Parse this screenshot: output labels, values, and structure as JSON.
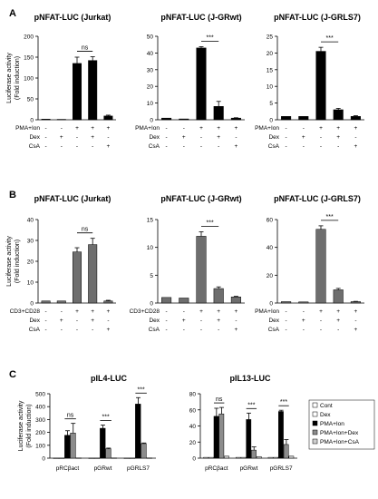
{
  "chart_data": [
    {
      "panel": "A",
      "type": "bar",
      "title": "pNFAT-LUC (Jurkat)",
      "ylabel": [
        "Luciferase activity",
        "(Fold induction)"
      ],
      "ylim": [
        0,
        200
      ],
      "yticks": [
        0,
        50,
        100,
        150,
        200
      ],
      "series": [
        {
          "color": "#000000",
          "values": [
            1.5,
            1,
            135,
            142,
            9
          ],
          "errors": [
            0,
            0,
            15,
            9,
            2
          ]
        }
      ],
      "conditions": [
        {
          "label": "PMA+Ion",
          "signs": [
            "-",
            "-",
            "+",
            "+",
            "+"
          ]
        },
        {
          "label": "Dex",
          "signs": [
            "-",
            "+",
            "-",
            "+",
            "-"
          ]
        },
        {
          "label": "CsA",
          "signs": [
            "-",
            "-",
            "-",
            "-",
            "+"
          ]
        }
      ],
      "significance": [
        {
          "from": 2,
          "to": 3,
          "label": "ns"
        }
      ]
    },
    {
      "panel": "",
      "type": "bar",
      "title": "pNFAT-LUC (J-GRwt)",
      "ylim": [
        0,
        50
      ],
      "yticks": [
        0,
        10,
        20,
        30,
        40,
        50
      ],
      "series": [
        {
          "color": "#000000",
          "values": [
            1,
            0.5,
            43,
            8,
            1
          ],
          "errors": [
            0,
            0,
            0.8,
            3,
            0.2
          ]
        }
      ],
      "conditions": [
        {
          "label": "PMA+Ion",
          "signs": [
            "-",
            "-",
            "+",
            "+",
            "+"
          ]
        },
        {
          "label": "Dex",
          "signs": [
            "-",
            "+",
            "-",
            "+",
            "-"
          ]
        },
        {
          "label": "CsA",
          "signs": [
            "-",
            "-",
            "-",
            "-",
            "+"
          ]
        }
      ],
      "significance": [
        {
          "from": 2,
          "to": 3,
          "label": "***"
        }
      ]
    },
    {
      "panel": "",
      "type": "bar",
      "title": "pNFAT-LUC (J-GRLS7)",
      "ylim": [
        0,
        25
      ],
      "yticks": [
        0,
        5,
        10,
        15,
        20,
        25
      ],
      "series": [
        {
          "color": "#000000",
          "values": [
            1,
            1,
            20.5,
            3,
            1
          ],
          "errors": [
            0,
            0,
            1.2,
            0.4,
            0.2
          ]
        }
      ],
      "conditions": [
        {
          "label": "PMA+Ion",
          "signs": [
            "-",
            "-",
            "+",
            "+",
            "+"
          ]
        },
        {
          "label": "Dex",
          "signs": [
            "-",
            "+",
            "-",
            "+",
            "-"
          ]
        },
        {
          "label": "CsA",
          "signs": [
            "-",
            "-",
            "-",
            "-",
            "+"
          ]
        }
      ],
      "significance": [
        {
          "from": 2,
          "to": 3,
          "label": "***"
        }
      ]
    },
    {
      "panel": "B",
      "type": "bar",
      "title": "pNFAT-LUC (Jurkat)",
      "ylabel": [
        "Luciferase activity",
        "(Fold induction)"
      ],
      "ylim": [
        0,
        40
      ],
      "yticks": [
        0,
        10,
        20,
        30,
        40
      ],
      "series": [
        {
          "color": "#6e6e6e",
          "values": [
            1,
            1,
            24.5,
            28,
            1
          ],
          "errors": [
            0,
            0,
            2,
            3,
            0.3
          ]
        }
      ],
      "conditions": [
        {
          "label": "CD3+CD28",
          "signs": [
            "-",
            "-",
            "+",
            "+",
            "+"
          ]
        },
        {
          "label": "Dex",
          "signs": [
            "-",
            "+",
            "-",
            "+",
            "-"
          ]
        },
        {
          "label": "CsA",
          "signs": [
            "-",
            "-",
            "-",
            "-",
            "+"
          ]
        }
      ],
      "significance": [
        {
          "from": 2,
          "to": 3,
          "label": "ns"
        }
      ]
    },
    {
      "panel": "",
      "type": "bar",
      "title": "pNFAT-LUC (J-GRwt)",
      "ylim": [
        0,
        15
      ],
      "yticks": [
        0,
        5,
        10,
        15
      ],
      "series": [
        {
          "color": "#6e6e6e",
          "values": [
            1,
            0.9,
            12,
            2.6,
            1.1
          ],
          "errors": [
            0,
            0,
            0.8,
            0.3,
            0.1
          ]
        }
      ],
      "conditions": [
        {
          "label": "CD3+CD28",
          "signs": [
            "-",
            "-",
            "+",
            "+",
            "+"
          ]
        },
        {
          "label": "Dex",
          "signs": [
            "-",
            "+",
            "-",
            "+",
            "-"
          ]
        },
        {
          "label": "CsA",
          "signs": [
            "-",
            "-",
            "-",
            "-",
            "+"
          ]
        }
      ],
      "significance": [
        {
          "from": 2,
          "to": 3,
          "label": "***"
        }
      ]
    },
    {
      "panel": "",
      "type": "bar",
      "title": "pNFAT-LUC (J-GRLS7)",
      "ylim": [
        0,
        60
      ],
      "yticks": [
        0,
        20,
        40,
        60
      ],
      "series": [
        {
          "color": "#6e6e6e",
          "values": [
            1,
            0.8,
            53,
            9.5,
            1
          ],
          "errors": [
            0,
            0,
            2.5,
            1,
            0.2
          ]
        }
      ],
      "conditions": [
        {
          "label": "PMA+Ion",
          "signs": [
            "-",
            "-",
            "+",
            "+",
            "+"
          ]
        },
        {
          "label": "Dex",
          "signs": [
            "-",
            "+",
            "-",
            "+",
            "-"
          ]
        },
        {
          "label": "CsA",
          "signs": [
            "-",
            "-",
            "-",
            "-",
            "+"
          ]
        }
      ],
      "significance": [
        {
          "from": 2,
          "to": 3,
          "label": "***"
        }
      ]
    },
    {
      "panel": "C",
      "type": "grouped-bar",
      "title": "pIL4-LUC",
      "ylabel": [
        "Luciferase activity",
        "(Fold induction)"
      ],
      "ylim": [
        0,
        500
      ],
      "yticks": [
        0,
        100,
        200,
        300,
        400,
        500
      ],
      "categories": [
        "pRCβact",
        "pGRwt",
        "pGRLS7"
      ],
      "series": [
        {
          "name": "Cont",
          "color": "#ffffff",
          "values": [
            1,
            1,
            1
          ],
          "errors": [
            0,
            0,
            0
          ]
        },
        {
          "name": "Dex",
          "color": "#ffffff",
          "values": [
            1,
            1,
            1
          ],
          "errors": [
            0,
            0,
            0
          ]
        },
        {
          "name": "PMA+Ion",
          "color": "#000000",
          "values": [
            178,
            232,
            420
          ],
          "errors": [
            35,
            25,
            50
          ]
        },
        {
          "name": "PMA+Ion+Dex",
          "color": "#8c8c8c",
          "values": [
            195,
            73,
            113
          ],
          "errors": [
            75,
            5,
            5
          ]
        },
        {
          "name": "PMA+Ion+CsA",
          "color": "#cfcfcf",
          "values": [
            2,
            2,
            2
          ],
          "errors": [
            0,
            0,
            0
          ]
        }
      ],
      "significance": [
        {
          "category": 0,
          "label": "ns"
        },
        {
          "category": 1,
          "label": "***"
        },
        {
          "category": 2,
          "label": "***"
        }
      ]
    },
    {
      "panel": "",
      "type": "grouped-bar",
      "title": "pIL13-LUC",
      "ylim": [
        0,
        80
      ],
      "yticks": [
        0,
        20,
        40,
        60,
        80
      ],
      "categories": [
        "pRCβact",
        "pGRwt",
        "pGRLS7"
      ],
      "series": [
        {
          "name": "Cont",
          "color": "#ffffff",
          "values": [
            1,
            1,
            1
          ],
          "errors": [
            0,
            0,
            0
          ]
        },
        {
          "name": "Dex",
          "color": "#ffffff",
          "values": [
            1,
            1,
            1
          ],
          "errors": [
            0,
            0,
            0
          ]
        },
        {
          "name": "PMA+Ion",
          "color": "#000000",
          "values": [
            52,
            48,
            58
          ],
          "errors": [
            10,
            8,
            1.5
          ]
        },
        {
          "name": "PMA+Ion+Dex",
          "color": "#8c8c8c",
          "values": [
            55,
            10,
            17
          ],
          "errors": [
            8,
            4,
            6
          ]
        },
        {
          "name": "PMA+Ion+CsA",
          "color": "#cfcfcf",
          "values": [
            2.5,
            2,
            2.5
          ],
          "errors": [
            0,
            0,
            0
          ]
        }
      ],
      "significance": [
        {
          "category": 0,
          "label": "ns"
        },
        {
          "category": 1,
          "label": "***"
        },
        {
          "category": 2,
          "label": "***"
        }
      ]
    }
  ],
  "legend": {
    "items": [
      {
        "name": "Cont",
        "color": "#ffffff"
      },
      {
        "name": "Dex",
        "color": "#ffffff"
      },
      {
        "name": "PMA+Ion",
        "color": "#000000"
      },
      {
        "name": "PMA+Ion+Dex",
        "color": "#8c8c8c"
      },
      {
        "name": "PMA+Ion+CsA",
        "color": "#cfcfcf"
      }
    ]
  }
}
